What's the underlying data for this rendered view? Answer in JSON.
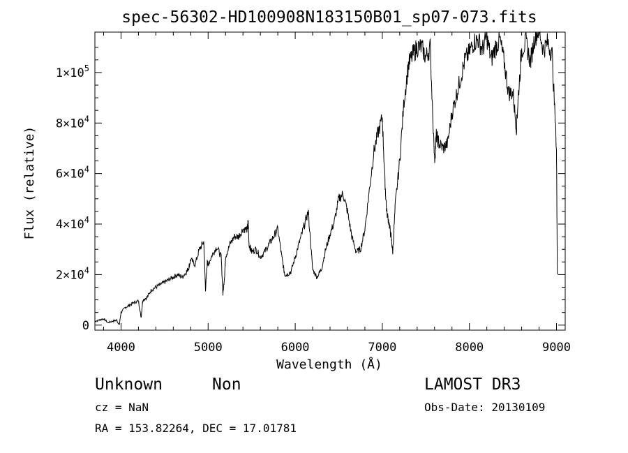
{
  "chart_data": {
    "type": "line",
    "title": "spec-56302-HD100908N183150B01_sp07-073.fits",
    "xlabel": "Wavelength (Å)",
    "ylabel": "Flux (relative)",
    "xlim": [
      3700,
      9100
    ],
    "ylim": [
      -2000,
      116000
    ],
    "x_ticks": [
      4000,
      5000,
      6000,
      7000,
      8000,
      9000
    ],
    "x_tick_labels": [
      "4000",
      "5000",
      "6000",
      "7000",
      "8000",
      "9000"
    ],
    "y_ticks": [
      0,
      20000,
      40000,
      60000,
      80000,
      100000
    ],
    "y_tick_labels": [
      {
        "mantissa": "0",
        "exp": ""
      },
      {
        "mantissa": "2×10",
        "exp": "4"
      },
      {
        "mantissa": "4×10",
        "exp": "4"
      },
      {
        "mantissa": "6×10",
        "exp": "4"
      },
      {
        "mantissa": "8×10",
        "exp": "4"
      },
      {
        "mantissa": "1×10",
        "exp": "5"
      }
    ],
    "grid": false,
    "series": [
      {
        "name": "spectrum",
        "x": [
          3700,
          3750,
          3800,
          3850,
          3900,
          3950,
          3980,
          4000,
          4050,
          4100,
          4150,
          4200,
          4230,
          4250,
          4300,
          4350,
          4400,
          4450,
          4500,
          4550,
          4600,
          4650,
          4700,
          4750,
          4780,
          4800,
          4850,
          4900,
          4950,
          4970,
          4990,
          5000,
          5050,
          5100,
          5150,
          5170,
          5190,
          5200,
          5250,
          5300,
          5350,
          5400,
          5450,
          5460,
          5470,
          5500,
          5550,
          5600,
          5650,
          5700,
          5750,
          5800,
          5850,
          5880,
          5900,
          5950,
          6000,
          6050,
          6100,
          6150,
          6200,
          6250,
          6300,
          6350,
          6400,
          6450,
          6500,
          6550,
          6600,
          6650,
          6700,
          6750,
          6800,
          6850,
          6900,
          6950,
          7000,
          7030,
          7050,
          7080,
          7100,
          7120,
          7150,
          7200,
          7250,
          7300,
          7350,
          7400,
          7450,
          7500,
          7550,
          7600,
          7620,
          7650,
          7700,
          7750,
          7800,
          7850,
          7900,
          7950,
          8000,
          8050,
          8100,
          8150,
          8200,
          8250,
          8300,
          8350,
          8400,
          8450,
          8500,
          8540,
          8560,
          8600,
          8650,
          8700,
          8750,
          8800,
          8850,
          8900,
          8950,
          9000,
          9010
        ],
        "y": [
          1500,
          2000,
          2500,
          1000,
          1500,
          2000,
          0,
          5000,
          7000,
          8000,
          9000,
          9500,
          3000,
          10000,
          11000,
          14000,
          15000,
          16000,
          17000,
          18000,
          19000,
          20000,
          19000,
          21000,
          23000,
          26000,
          24000,
          30000,
          33000,
          14000,
          25000,
          24000,
          28000,
          31000,
          27000,
          12000,
          20000,
          27000,
          32000,
          35000,
          35000,
          38000,
          38000,
          41000,
          32000,
          29000,
          30000,
          27000,
          29000,
          32000,
          35000,
          38000,
          26000,
          20000,
          20000,
          21000,
          27000,
          33000,
          39000,
          45000,
          22000,
          19000,
          22000,
          30000,
          36000,
          41000,
          50000,
          52000,
          45000,
          35000,
          29000,
          30000,
          38000,
          53000,
          68000,
          76000,
          82000,
          57000,
          45000,
          40000,
          35000,
          29000,
          48000,
          65000,
          89000,
          103000,
          107000,
          110000,
          110000,
          106000,
          110000,
          65000,
          75000,
          72000,
          70000,
          72000,
          84000,
          91000,
          98000,
          105000,
          108000,
          112000,
          113000,
          109000,
          114000,
          105000,
          110000,
          113000,
          104000,
          92000,
          92000,
          78000,
          90000,
          109000,
          112000,
          104000,
          114000,
          117000,
          109000,
          112000,
          107000,
          70000,
          20000
        ]
      }
    ]
  },
  "footer": {
    "classification": "Unknown",
    "subclass": "Non",
    "redshift": "cz = NaN",
    "coords": "RA = 153.82264, DEC =  17.01781",
    "survey": "LAMOST DR3",
    "obs_date": "Obs-Date: 20130109"
  }
}
